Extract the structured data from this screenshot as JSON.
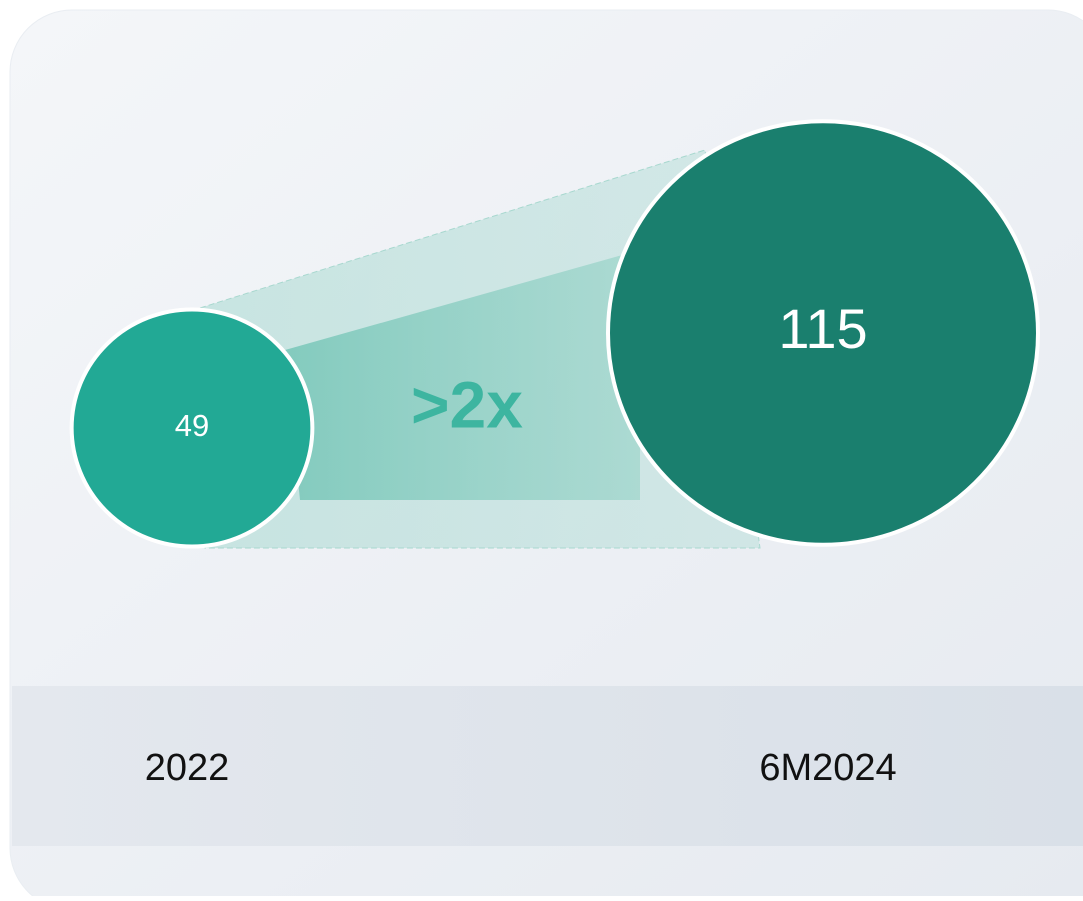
{
  "chart_data": {
    "type": "bubble",
    "categories": [
      "2022",
      "6M2024"
    ],
    "values": [
      49,
      115
    ],
    "colors": [
      "#22a995",
      "#1a7f6e"
    ],
    "annotation": ">2x",
    "annotation_color": "#3db5a0"
  }
}
